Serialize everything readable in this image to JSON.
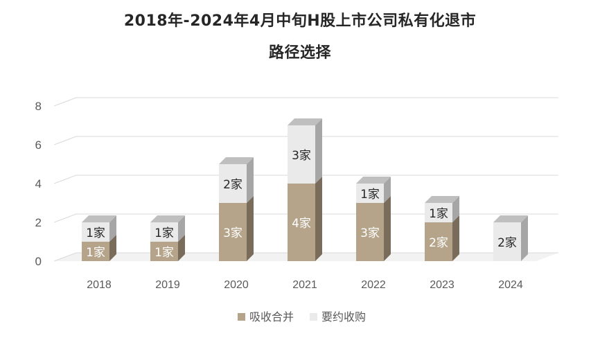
{
  "chart_data": {
    "type": "bar",
    "stacked": true,
    "title_line1": "2018年-2024年4月中旬H股上市公司私有化退市",
    "title_line2": "路径选择",
    "categories": [
      "2018",
      "2019",
      "2020",
      "2021",
      "2022",
      "2023",
      "2024"
    ],
    "series": [
      {
        "name": "吸收合并",
        "values": [
          1,
          1,
          3,
          4,
          3,
          2,
          0
        ],
        "labels": [
          "1家",
          "1家",
          "3家",
          "4家",
          "3家",
          "2家",
          ""
        ]
      },
      {
        "name": "要约收购",
        "values": [
          1,
          1,
          2,
          3,
          1,
          1,
          2
        ],
        "labels": [
          "1家",
          "1家",
          "2家",
          "3家",
          "1家",
          "1家",
          "2家"
        ]
      }
    ],
    "y_ticks": [
      "0",
      "2",
      "4",
      "6",
      "8"
    ],
    "ylim": [
      0,
      8
    ],
    "grid": true,
    "legend_position": "bottom",
    "colors": {
      "吸收合并": "#b5a48a",
      "要约收购": "#eaeaea"
    }
  }
}
